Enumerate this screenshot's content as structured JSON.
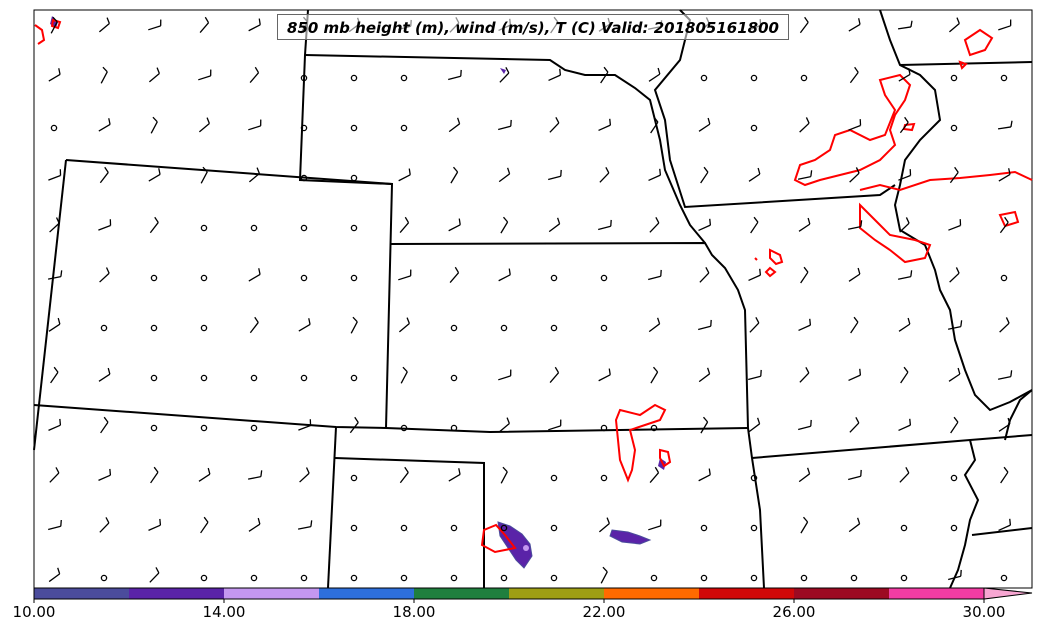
{
  "title": "850 mb height (m), wind (m/s), T (C) Valid: 201805161800",
  "colorbar": {
    "colors": [
      "#4b4c9c",
      "#5a23a8",
      "#c497f0",
      "#2e6fdb",
      "#1f7f3e",
      "#9e9e14",
      "#ff6a00",
      "#d10808",
      "#9c0a22",
      "#f23ca3",
      "#f7a6d2"
    ],
    "tick_labels": [
      "10.00",
      "14.00",
      "18.00",
      "22.00",
      "26.00",
      "30.00"
    ],
    "min": 10,
    "max": 31,
    "extend": "max"
  },
  "contour_color": "#ff0000"
}
